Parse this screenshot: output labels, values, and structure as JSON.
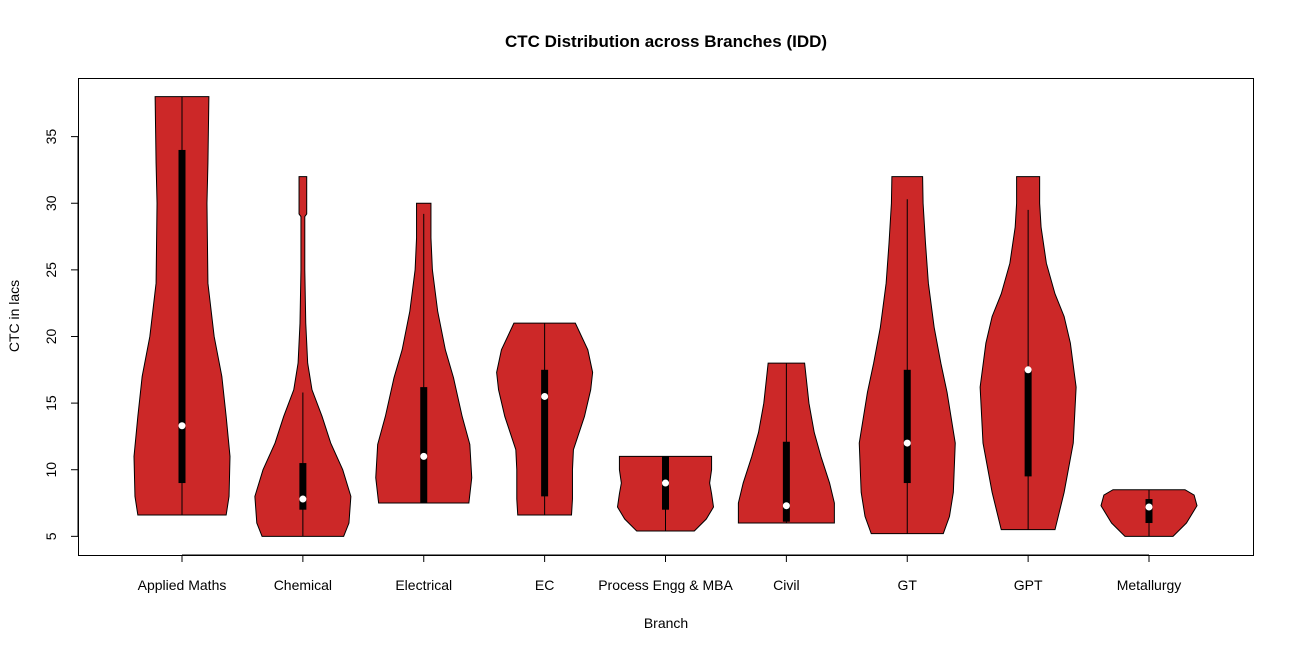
{
  "chart_data": {
    "type": "violin",
    "title": "CTC Distribution across Branches (IDD)",
    "xlabel": "Branch",
    "ylabel": "CTC in lacs",
    "ylim": [
      3.6,
      39.4
    ],
    "yticks": [
      5,
      10,
      15,
      20,
      25,
      30,
      35
    ],
    "grid": false,
    "fill_color": "#CC2828",
    "categories": [
      "Applied Maths",
      "Chemical",
      "Electrical",
      "EC",
      "Process Engg & MBA",
      "Civil",
      "GT",
      "GPT",
      "Metallurgy"
    ],
    "series": [
      {
        "category": "Applied Maths",
        "min": 6.6,
        "q1": 9,
        "median": 13.3,
        "q3": 34,
        "max": 38,
        "density": [
          [
            6.6,
            0.92
          ],
          [
            8,
            0.98
          ],
          [
            11,
            1.0
          ],
          [
            14,
            0.92
          ],
          [
            17,
            0.83
          ],
          [
            20,
            0.67
          ],
          [
            24,
            0.54
          ],
          [
            30,
            0.52
          ],
          [
            33,
            0.54
          ],
          [
            38,
            0.56
          ]
        ]
      },
      {
        "category": "Chemical",
        "min": 5,
        "q1": 7,
        "median": 7.8,
        "q3": 10.5,
        "max": 32,
        "whisker_high": 15.8,
        "density": [
          [
            5,
            0.85
          ],
          [
            6,
            0.96
          ],
          [
            8,
            1.0
          ],
          [
            10,
            0.83
          ],
          [
            12,
            0.58
          ],
          [
            14,
            0.4
          ],
          [
            16,
            0.19
          ],
          [
            18,
            0.1
          ],
          [
            21,
            0.06
          ],
          [
            25,
            0.04
          ],
          [
            29,
            0.04
          ],
          [
            29.2,
            0.08
          ],
          [
            32,
            0.08
          ]
        ]
      },
      {
        "category": "Electrical",
        "min": 7.5,
        "q1": 7.5,
        "median": 11,
        "q3": 16.2,
        "max": 30,
        "whisker_high": 29.2,
        "density": [
          [
            7.5,
            0.94
          ],
          [
            9.4,
            1.0
          ],
          [
            11.9,
            0.96
          ],
          [
            14,
            0.8
          ],
          [
            16.9,
            0.62
          ],
          [
            19,
            0.45
          ],
          [
            21.9,
            0.29
          ],
          [
            25,
            0.18
          ],
          [
            27.4,
            0.15
          ],
          [
            30,
            0.15
          ]
        ]
      },
      {
        "category": "EC",
        "min": 6.6,
        "q1": 8,
        "median": 15.5,
        "q3": 17.5,
        "max": 21,
        "density": [
          [
            6.6,
            0.56
          ],
          [
            7.8,
            0.58
          ],
          [
            10,
            0.58
          ],
          [
            11.5,
            0.6
          ],
          [
            14,
            0.83
          ],
          [
            16,
            0.96
          ],
          [
            17.3,
            1.0
          ],
          [
            19,
            0.9
          ],
          [
            21,
            0.64
          ]
        ]
      },
      {
        "category": "Process Engg & MBA",
        "min": 5.4,
        "q1": 7,
        "median": 9,
        "q3": 11,
        "max": 11,
        "density": [
          [
            5.4,
            0.6
          ],
          [
            6.3,
            0.85
          ],
          [
            7.2,
            1.0
          ],
          [
            8.2,
            0.96
          ],
          [
            9,
            0.92
          ],
          [
            10,
            0.96
          ],
          [
            11,
            0.96
          ]
        ]
      },
      {
        "category": "Civil",
        "min": 6,
        "q1": 6.1,
        "median": 7.3,
        "q3": 12.1,
        "max": 18,
        "density": [
          [
            6,
            1.0
          ],
          [
            7.5,
            1.0
          ],
          [
            9,
            0.9
          ],
          [
            11,
            0.72
          ],
          [
            12.8,
            0.58
          ],
          [
            15,
            0.47
          ],
          [
            18,
            0.38
          ]
        ]
      },
      {
        "category": "GT",
        "min": 5.2,
        "q1": 9,
        "median": 12,
        "q3": 17.5,
        "max": 32,
        "whisker_high": 30.3,
        "density": [
          [
            5.2,
            0.75
          ],
          [
            6.5,
            0.88
          ],
          [
            8.3,
            0.96
          ],
          [
            12,
            1.0
          ],
          [
            15.8,
            0.83
          ],
          [
            18,
            0.7
          ],
          [
            20.7,
            0.56
          ],
          [
            24,
            0.44
          ],
          [
            27,
            0.38
          ],
          [
            30,
            0.33
          ],
          [
            32,
            0.32
          ]
        ]
      },
      {
        "category": "GPT",
        "min": 5.5,
        "q1": 9.5,
        "median": 17.5,
        "q3": 17.5,
        "max": 32,
        "whisker_high": 29.5,
        "density": [
          [
            5.5,
            0.56
          ],
          [
            8.3,
            0.75
          ],
          [
            12,
            0.94
          ],
          [
            16.2,
            1.0
          ],
          [
            19.5,
            0.88
          ],
          [
            21.5,
            0.75
          ],
          [
            23.2,
            0.56
          ],
          [
            25.5,
            0.38
          ],
          [
            28.2,
            0.27
          ],
          [
            30,
            0.24
          ],
          [
            32,
            0.24
          ]
        ]
      },
      {
        "category": "Metallurgy",
        "min": 5,
        "q1": 6,
        "median": 7.2,
        "q3": 7.8,
        "max": 8.5,
        "density": [
          [
            5,
            0.5
          ],
          [
            6,
            0.78
          ],
          [
            7.3,
            1.0
          ],
          [
            8.1,
            0.94
          ],
          [
            8.5,
            0.75
          ]
        ]
      }
    ]
  }
}
